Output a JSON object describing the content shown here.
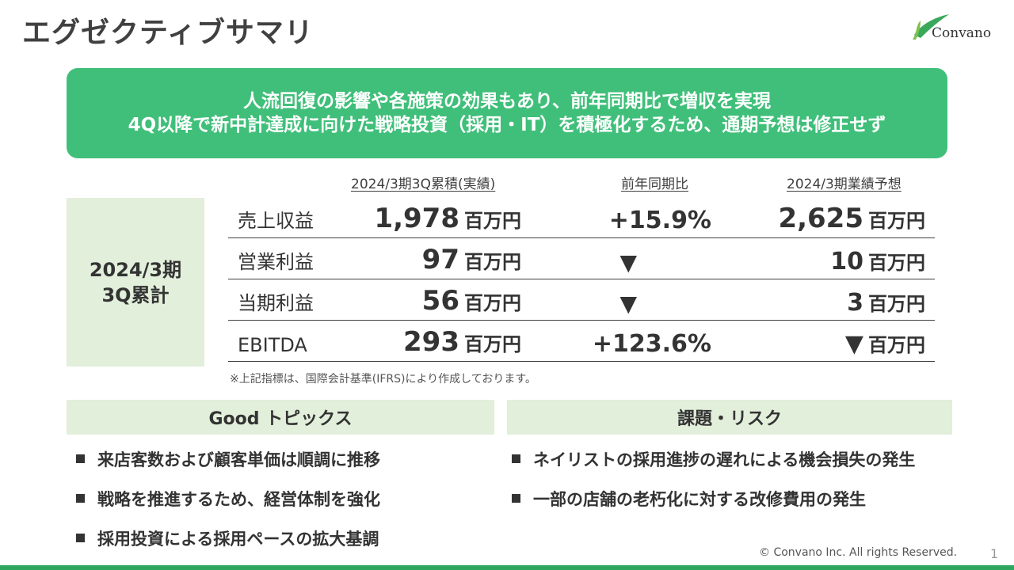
{
  "header": {
    "title": "エグゼクティブサマリ",
    "logo_text": "Convano"
  },
  "banner": {
    "line1": "人流回復の影響や各施策の効果もあり、前年同期比で増収を実現",
    "line2": "4Q以降で新中計達成に向けた戦略投資（採用・IT）を積極化するため、通期予想は修正せず"
  },
  "period": {
    "line1": "2024/3期",
    "line2": "3Q累計"
  },
  "table": {
    "headers": [
      "2024/3期3Q累積(実績)",
      "前年同期比",
      "2024/3期業績予想"
    ],
    "rows": [
      {
        "label": "売上収益",
        "actual": "1,978",
        "actual_unit": "百万円",
        "yoy": "+15.9%",
        "forecast": "2,625",
        "forecast_unit": "百万円"
      },
      {
        "label": "営業利益",
        "actual": "97",
        "actual_unit": "百万円",
        "yoy": "▼",
        "forecast": "10",
        "forecast_unit": "百万円"
      },
      {
        "label": "当期利益",
        "actual": "56",
        "actual_unit": "百万円",
        "yoy": "▼",
        "forecast": "3",
        "forecast_unit": "百万円"
      },
      {
        "label": "EBITDA",
        "actual": "293",
        "actual_unit": "百万円",
        "yoy": "+123.6%",
        "forecast": "▼",
        "forecast_unit": "百万円"
      }
    ],
    "note": "※上記指標は、国際会計基準(IFRS)により作成しております。"
  },
  "good": {
    "title": "Good トピックス",
    "items": [
      "来店客数および顧客単価は順調に推移",
      "戦略を推進するため、経営体制を強化",
      "採用投資による採用ペースの拡大基調"
    ]
  },
  "risk": {
    "title": "課題・リスク",
    "items": [
      "ネイリストの採用進捗の遅れによる機会損失の発生",
      "一部の店舗の老朽化に対する改修費用の発生"
    ]
  },
  "footer": {
    "copyright": "© Convano Inc. All rights Reserved.",
    "page": "1"
  },
  "colors": {
    "accent": "#40bf7a",
    "panel": "#e2efdb",
    "footer_line": "#2fa65f"
  }
}
